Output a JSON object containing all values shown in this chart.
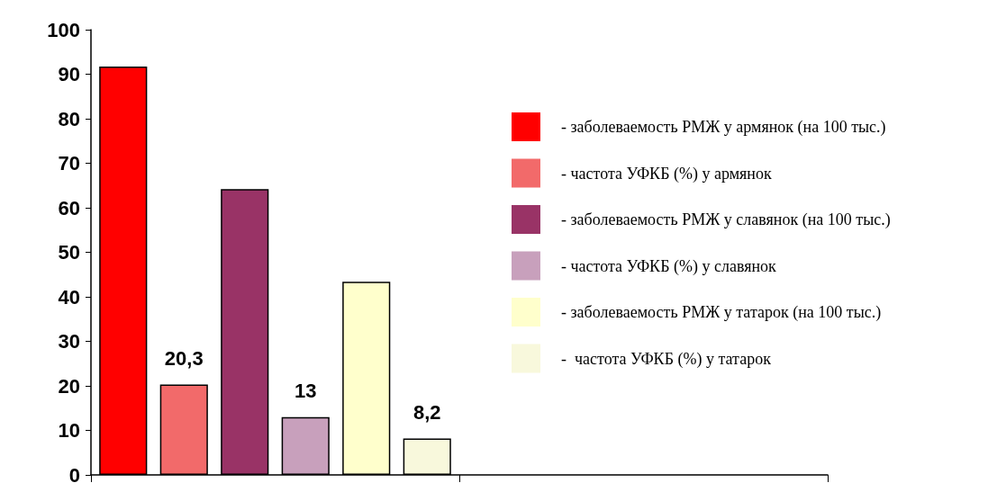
{
  "chart_data": {
    "type": "bar",
    "categories": [
      null,
      null
    ],
    "series": [
      {
        "name": "- заболеваемость РМЖ у армянок (на 100 тыс.)",
        "color": "#ff0000",
        "values": [
          91.7,
          null
        ],
        "value_labels": [
          null,
          null
        ]
      },
      {
        "name": "- частота УФКБ (%) у армянок",
        "color": "#f26a6a",
        "values": [
          20.3,
          null
        ],
        "value_labels": [
          "20,3",
          null
        ]
      },
      {
        "name": "- заболеваемость РМЖ у славянок (на 100 тыс.)",
        "color": "#993366",
        "values": [
          64.2,
          null
        ],
        "value_labels": [
          null,
          null
        ]
      },
      {
        "name": "- частота УФКБ (%) у славянок",
        "color": "#c8a0bc",
        "values": [
          13,
          null
        ],
        "value_labels": [
          "13",
          null
        ]
      },
      {
        "name": "- заболеваемость РМЖ у татарок (на 100 тыс.)",
        "color": "#ffffcc",
        "values": [
          43.4,
          null
        ],
        "value_labels": [
          null,
          null
        ]
      },
      {
        "name": "-  частота УФКБ (%) у татарок",
        "color": "#f8f8dc",
        "values": [
          8.2,
          null
        ],
        "value_labels": [
          "8,2",
          null
        ]
      }
    ],
    "ylim": [
      0,
      100
    ],
    "yticks": [
      0,
      10,
      20,
      30,
      40,
      50,
      60,
      70,
      80,
      90,
      100
    ],
    "grid": false,
    "legend": "right"
  }
}
